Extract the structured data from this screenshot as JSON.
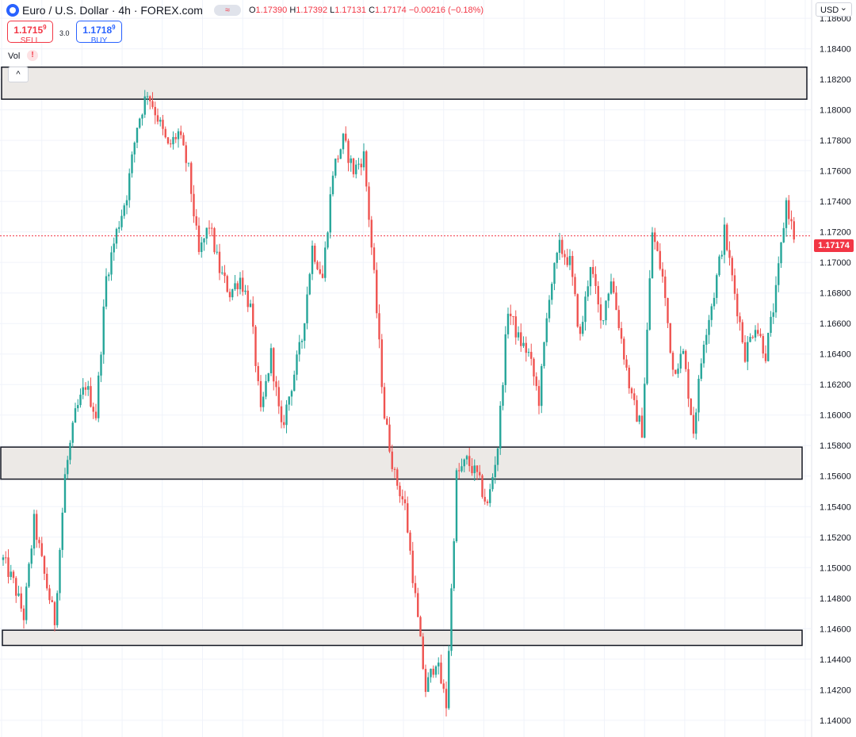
{
  "header": {
    "symbol": "Euro / U.S. Dollar · 4h · FOREX.com",
    "toggle_text": "≈",
    "ohlc": {
      "o": "1.17390",
      "h": "1.17392",
      "l": "1.17131",
      "c": "1.17174",
      "change": "−0.00216 (−0.18%)"
    }
  },
  "trade": {
    "sell_price": "1.1715",
    "sell_sup": "9",
    "sell_label": "SELL",
    "buy_price": "1.1718",
    "buy_sup": "9",
    "buy_label": "BUY",
    "spread": "3.0"
  },
  "volume_label": "Vol",
  "warning_icon": "!",
  "collapse_icon": "^",
  "currency_selector": "USD",
  "last_price_label": "1.17174",
  "colors": {
    "up": "#26a69a",
    "down": "#ef5350",
    "zone_fill": "#ece9e6",
    "zone_stroke": "#131722",
    "price_line": "#f23645"
  },
  "chart_data": {
    "type": "candlestick",
    "y_ticks": [
      "1.18600",
      "1.18400",
      "1.18200",
      "1.18000",
      "1.17800",
      "1.17600",
      "1.17400",
      "1.17200",
      "1.17000",
      "1.16800",
      "1.16600",
      "1.16400",
      "1.16200",
      "1.16000",
      "1.15800",
      "1.15600",
      "1.15400",
      "1.15200",
      "1.15000",
      "1.14800",
      "1.14600",
      "1.14400",
      "1.14200",
      "1.14000"
    ],
    "ylim": [
      1.1389,
      1.1872
    ],
    "last_price": 1.17174,
    "zones": [
      {
        "low": 1.1807,
        "high": 1.1828
      },
      {
        "low": 1.1558,
        "high": 1.1579
      },
      {
        "low": 1.1449,
        "high": 1.1459
      }
    ],
    "swing_path": [
      [
        0,
        1.1505
      ],
      [
        4,
        1.149
      ],
      [
        8,
        1.1468
      ],
      [
        12,
        1.153
      ],
      [
        16,
        1.1495
      ],
      [
        20,
        1.1465
      ],
      [
        24,
        1.156
      ],
      [
        28,
        1.16
      ],
      [
        32,
        1.162
      ],
      [
        36,
        1.16
      ],
      [
        40,
        1.169
      ],
      [
        44,
        1.172
      ],
      [
        48,
        1.1745
      ],
      [
        52,
        1.179
      ],
      [
        56,
        1.1812
      ],
      [
        60,
        1.1795
      ],
      [
        64,
        1.1775
      ],
      [
        68,
        1.1785
      ],
      [
        72,
        1.176
      ],
      [
        76,
        1.1705
      ],
      [
        80,
        1.1725
      ],
      [
        84,
        1.1695
      ],
      [
        88,
        1.168
      ],
      [
        92,
        1.169
      ],
      [
        96,
        1.167
      ],
      [
        100,
        1.16
      ],
      [
        104,
        1.164
      ],
      [
        108,
        1.159
      ],
      [
        112,
        1.162
      ],
      [
        116,
        1.165
      ],
      [
        120,
        1.171
      ],
      [
        124,
        1.169
      ],
      [
        128,
        1.176
      ],
      [
        132,
        1.178
      ],
      [
        136,
        1.176
      ],
      [
        140,
        1.177
      ],
      [
        144,
        1.169
      ],
      [
        148,
        1.16
      ],
      [
        152,
        1.156
      ],
      [
        156,
        1.154
      ],
      [
        160,
        1.148
      ],
      [
        164,
        1.142
      ],
      [
        168,
        1.144
      ],
      [
        172,
        1.141
      ],
      [
        176,
        1.156
      ],
      [
        180,
        1.157
      ],
      [
        184,
        1.156
      ],
      [
        188,
        1.154
      ],
      [
        192,
        1.158
      ],
      [
        196,
        1.167
      ],
      [
        200,
        1.165
      ],
      [
        204,
        1.164
      ],
      [
        208,
        1.161
      ],
      [
        212,
        1.168
      ],
      [
        216,
        1.171
      ],
      [
        220,
        1.17
      ],
      [
        224,
        1.165
      ],
      [
        228,
        1.17
      ],
      [
        232,
        1.166
      ],
      [
        236,
        1.169
      ],
      [
        240,
        1.165
      ],
      [
        244,
        1.161
      ],
      [
        248,
        1.159
      ],
      [
        252,
        1.172
      ],
      [
        256,
        1.169
      ],
      [
        260,
        1.163
      ],
      [
        264,
        1.164
      ],
      [
        268,
        1.159
      ],
      [
        272,
        1.165
      ],
      [
        276,
        1.168
      ],
      [
        280,
        1.172
      ],
      [
        284,
        1.168
      ],
      [
        288,
        1.164
      ],
      [
        292,
        1.166
      ],
      [
        296,
        1.164
      ],
      [
        300,
        1.168
      ],
      [
        304,
        1.174
      ],
      [
        307,
        1.1717
      ]
    ]
  }
}
